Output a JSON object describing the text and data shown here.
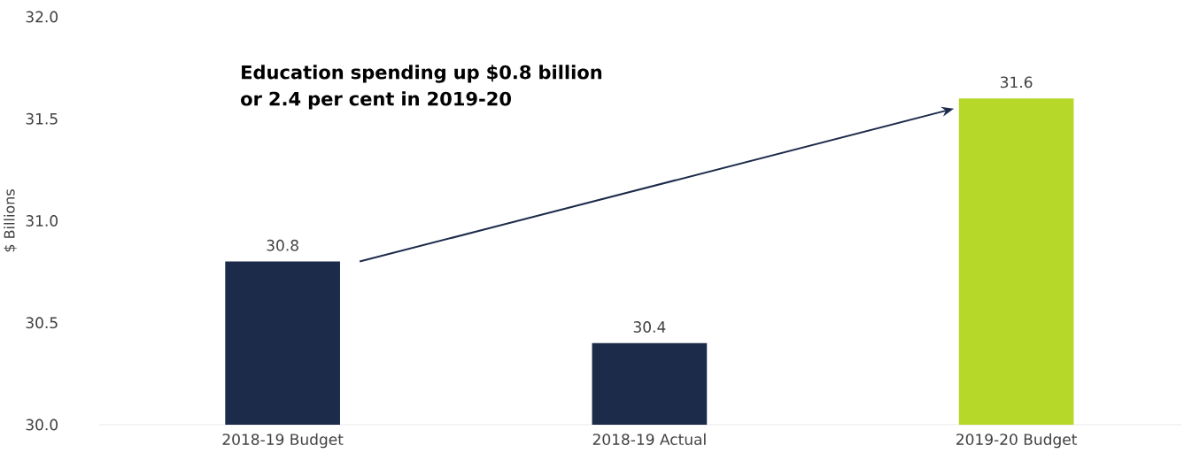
{
  "chart_data": {
    "type": "bar",
    "categories": [
      "2018-19 Budget",
      "2018-19 Actual",
      "2019-20 Budget"
    ],
    "values": [
      30.8,
      30.4,
      31.6
    ],
    "colors": [
      "#1c2b4a",
      "#1c2b4a",
      "#b5d829"
    ],
    "ylabel": "$ Billions",
    "ylim": [
      30,
      32
    ],
    "yticks": [
      {
        "value": 30,
        "label": "30.0"
      },
      {
        "value": 30.5,
        "label": "30.5"
      },
      {
        "value": 31,
        "label": "31.0"
      },
      {
        "value": 31.5,
        "label": "31.5"
      },
      {
        "value": 32,
        "label": "32.0"
      }
    ],
    "data_labels": true,
    "annotations": [
      "Education spending up $0.8 billion or 2.4 per cent in 2019-20"
    ]
  }
}
